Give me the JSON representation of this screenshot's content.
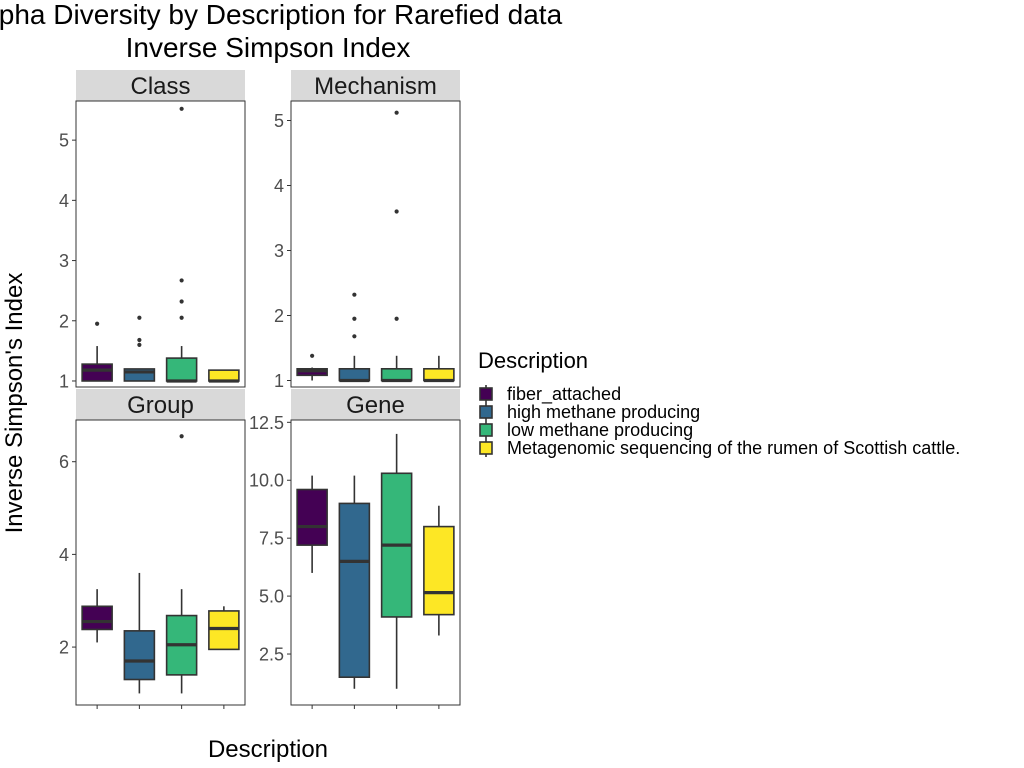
{
  "chart_data": {
    "type": "boxplot",
    "title": "Alpha Diversity by Description for Rarefied data",
    "subtitle": "Inverse Simpson Index",
    "xlabel": "Description",
    "ylabel": "Inverse Simpson's Index",
    "legend": {
      "title": "Description",
      "placement": "right",
      "entries": [
        {
          "name": "fiber_attached",
          "color": "#440154"
        },
        {
          "name": "high methane producing",
          "color": "#31688E"
        },
        {
          "name": "low methane producing",
          "color": "#35B779"
        },
        {
          "name": "Metagenomic sequencing of the rumen of Scottish cattle.",
          "color": "#FDE725"
        }
      ]
    },
    "panels": [
      {
        "name": "Class",
        "ylim": [
          0.9,
          5.65
        ],
        "yticks": [
          1,
          2,
          3,
          4,
          5
        ],
        "ytick_labels": [
          "1",
          "2",
          "3",
          "4",
          "5"
        ],
        "boxes": [
          {
            "q1": 1.0,
            "median": 1.18,
            "q3": 1.28,
            "wlo": 1.0,
            "whi": 1.58,
            "outliers": [
              1.95
            ]
          },
          {
            "q1": 1.0,
            "median": 1.15,
            "q3": 1.2,
            "wlo": 1.0,
            "whi": 1.2,
            "outliers": [
              1.6,
              1.68,
              2.05
            ]
          },
          {
            "q1": 1.0,
            "median": 1.0,
            "q3": 1.38,
            "wlo": 1.0,
            "whi": 1.58,
            "outliers": [
              2.05,
              2.32,
              2.67,
              5.52
            ]
          },
          {
            "q1": 1.0,
            "median": 1.0,
            "q3": 1.18,
            "wlo": 1.0,
            "whi": 1.18,
            "outliers": []
          }
        ]
      },
      {
        "name": "Mechanism",
        "ylim": [
          0.9,
          5.3
        ],
        "yticks": [
          1,
          2,
          3,
          4,
          5
        ],
        "ytick_labels": [
          "1",
          "2",
          "3",
          "4",
          "5"
        ],
        "boxes": [
          {
            "q1": 1.08,
            "median": 1.15,
            "q3": 1.18,
            "wlo": 1.0,
            "whi": 1.2,
            "outliers": [
              1.38
            ]
          },
          {
            "q1": 1.0,
            "median": 1.0,
            "q3": 1.18,
            "wlo": 1.0,
            "whi": 1.38,
            "outliers": [
              1.68,
              1.95,
              2.32
            ]
          },
          {
            "q1": 1.0,
            "median": 1.0,
            "q3": 1.18,
            "wlo": 1.0,
            "whi": 1.38,
            "outliers": [
              1.95,
              3.6,
              5.12
            ]
          },
          {
            "q1": 1.0,
            "median": 1.0,
            "q3": 1.18,
            "wlo": 1.0,
            "whi": 1.38,
            "outliers": []
          }
        ]
      },
      {
        "name": "Group",
        "ylim": [
          0.75,
          6.9
        ],
        "yticks": [
          2,
          4,
          6
        ],
        "ytick_labels": [
          "2",
          "4",
          "6"
        ],
        "boxes": [
          {
            "q1": 2.38,
            "median": 2.55,
            "q3": 2.88,
            "wlo": 2.1,
            "whi": 3.25,
            "outliers": []
          },
          {
            "q1": 1.3,
            "median": 1.7,
            "q3": 2.35,
            "wlo": 1.0,
            "whi": 3.6,
            "outliers": []
          },
          {
            "q1": 1.4,
            "median": 2.05,
            "q3": 2.68,
            "wlo": 1.0,
            "whi": 3.25,
            "outliers": [
              6.55
            ]
          },
          {
            "q1": 1.95,
            "median": 2.4,
            "q3": 2.78,
            "wlo": 1.95,
            "whi": 2.88,
            "outliers": []
          }
        ]
      },
      {
        "name": "Gene",
        "ylim": [
          0.3,
          12.6
        ],
        "yticks": [
          2.5,
          5.0,
          7.5,
          10.0,
          12.5
        ],
        "ytick_labels": [
          "2.5",
          "5.0",
          "7.5",
          "10.0",
          "12.5"
        ],
        "boxes": [
          {
            "q1": 7.2,
            "median": 8.0,
            "q3": 9.6,
            "wlo": 6.0,
            "whi": 10.2,
            "outliers": []
          },
          {
            "q1": 1.5,
            "median": 6.5,
            "q3": 9.0,
            "wlo": 1.0,
            "whi": 10.2,
            "outliers": []
          },
          {
            "q1": 4.1,
            "median": 7.2,
            "q3": 10.3,
            "wlo": 1.0,
            "whi": 12.0,
            "outliers": []
          },
          {
            "q1": 4.2,
            "median": 5.15,
            "q3": 8.0,
            "wlo": 3.3,
            "whi": 8.9,
            "outliers": []
          }
        ]
      }
    ],
    "grid": false
  }
}
